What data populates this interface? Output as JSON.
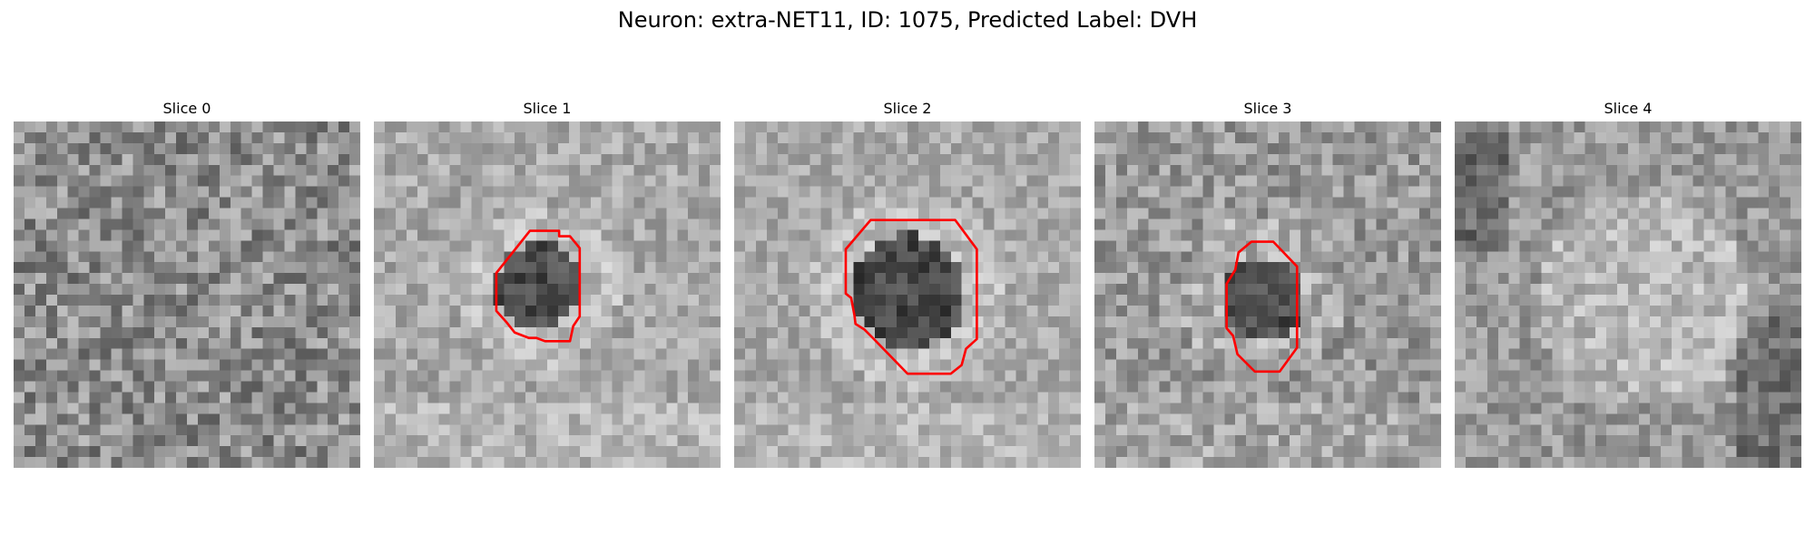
{
  "figure": {
    "title": "Neuron: extra-NET11, ID: 1075, Predicted Label: DVH",
    "neuron": "extra-NET11",
    "id": "1075",
    "predicted_label": "DVH",
    "contour_color": "#ff0000",
    "colormap": "gray"
  },
  "slices": [
    {
      "title": "Slice 0",
      "has_contour": false
    },
    {
      "title": "Slice 1",
      "has_contour": true
    },
    {
      "title": "Slice 2",
      "has_contour": true
    },
    {
      "title": "Slice 3",
      "has_contour": true
    },
    {
      "title": "Slice 4",
      "has_contour": false
    }
  ]
}
